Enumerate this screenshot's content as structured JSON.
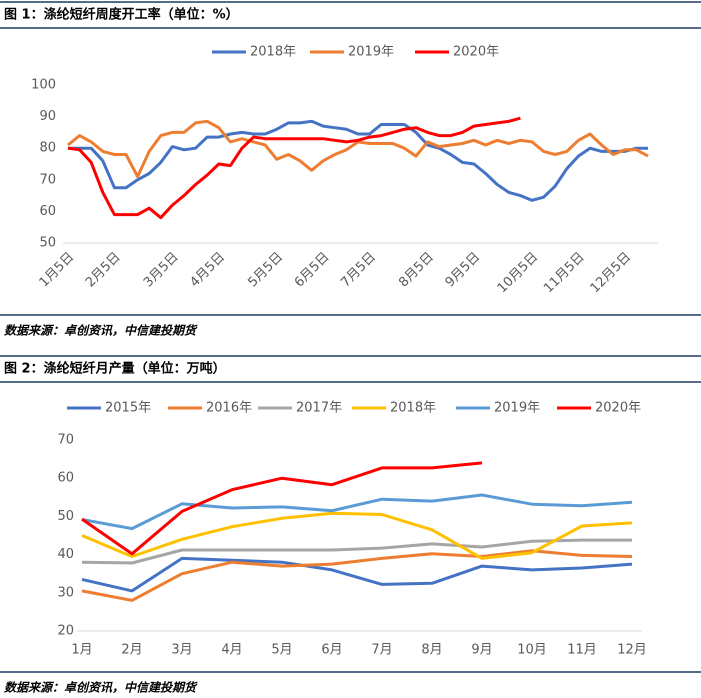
{
  "chart_data": [
    {
      "type": "line",
      "title": "图 1：涤纶短纤周度开工率（单位：%）",
      "source": "数据来源：卓创资讯，中信建投期货",
      "categories": [
        "1月5日",
        null,
        null,
        null,
        "2月5日",
        null,
        null,
        null,
        null,
        "3月5日",
        null,
        null,
        null,
        "4月5日",
        null,
        null,
        null,
        null,
        "5月5日",
        null,
        null,
        null,
        "6月5日",
        null,
        null,
        null,
        "7月5日",
        null,
        null,
        null,
        null,
        "8月5日",
        null,
        null,
        null,
        "9月5日",
        null,
        null,
        null,
        null,
        "10月5日",
        null,
        null,
        null,
        "11月5日",
        null,
        null,
        null,
        "12月5日",
        null,
        null
      ],
      "series": [
        {
          "name": "2018年",
          "color": "#4472c4",
          "values": [
            80,
            80,
            80,
            76,
            67.5,
            67.5,
            70,
            72,
            75.5,
            80.5,
            79.5,
            80,
            83.5,
            83.5,
            84.5,
            85,
            84.5,
            84.5,
            86,
            88,
            88,
            88.5,
            87,
            86.5,
            86,
            84.5,
            84.5,
            87.5,
            87.5,
            87.5,
            85,
            81,
            80,
            78,
            75.5,
            75,
            72,
            68.5,
            66,
            65,
            63.5,
            64.5,
            68,
            73.5,
            77.5,
            80,
            79,
            79,
            79,
            80,
            80
          ]
        },
        {
          "name": "2019年",
          "color": "#ed7d31",
          "values": [
            81,
            84,
            82,
            79,
            78,
            78,
            71,
            79,
            84,
            85,
            85,
            88,
            88.5,
            86.5,
            82,
            83,
            82,
            81,
            76.5,
            78,
            76,
            73,
            76,
            78,
            79.5,
            82,
            81.5,
            81.5,
            81.5,
            80,
            77.5,
            82,
            80.5,
            81,
            81.5,
            82.5,
            81,
            82.5,
            81.5,
            82.5,
            82,
            79,
            78,
            79,
            82.5,
            84.5,
            81,
            78,
            79.5,
            79.5,
            77.5
          ]
        },
        {
          "name": "2020年",
          "color": "#ff0000",
          "values": [
            80,
            79.5,
            75.5,
            66,
            59,
            59,
            59,
            61,
            58,
            62,
            65,
            68.5,
            71.5,
            75,
            74.5,
            80,
            83.5,
            83,
            83,
            83,
            83,
            83,
            83,
            82.5,
            82,
            82.5,
            83.5,
            84,
            85,
            86,
            86.5,
            85,
            84,
            84,
            85,
            87,
            87.5,
            88,
            88.5,
            89.5,
            null,
            null,
            null,
            null,
            null,
            null,
            null,
            null,
            null,
            null,
            null
          ]
        }
      ],
      "ylim": [
        50,
        100
      ],
      "yticks": [
        50,
        60,
        70,
        80,
        90,
        100
      ],
      "grid": false,
      "legend": "top"
    },
    {
      "type": "line",
      "title": "图 2：涤纶短纤月产量（单位：万吨）",
      "source": "数据来源：卓创资讯，中信建投期货",
      "categories": [
        "1月",
        "2月",
        "3月",
        "4月",
        "5月",
        "6月",
        "7月",
        "8月",
        "9月",
        "10月",
        "11月",
        "12月"
      ],
      "series": [
        {
          "name": "2015年",
          "color": "#4472c4",
          "values": [
            33.5,
            30.5,
            39,
            38.5,
            38,
            36,
            32.2,
            32.5,
            37,
            36,
            36.5,
            37.5
          ]
        },
        {
          "name": "2016年",
          "color": "#ed7d31",
          "values": [
            30.5,
            28,
            35,
            38,
            37,
            37.5,
            39,
            40.2,
            39.5,
            41,
            39.8,
            39.5
          ]
        },
        {
          "name": "2017年",
          "color": "#a5a5a5",
          "values": [
            38,
            37.8,
            41.2,
            41.2,
            41.2,
            41.2,
            41.7,
            42.8,
            42,
            43.5,
            43.8,
            43.8
          ]
        },
        {
          "name": "2018年",
          "color": "#ffc000",
          "values": [
            45,
            39.5,
            44,
            47.3,
            49.5,
            50.8,
            50.5,
            46.5,
            39,
            40.5,
            47.5,
            48.3
          ]
        },
        {
          "name": "2019年",
          "color": "#5b9bd5",
          "values": [
            49.2,
            46.8,
            53.3,
            52.2,
            52.5,
            51.5,
            54.5,
            54,
            55.6,
            53.2,
            52.8,
            53.7
          ]
        },
        {
          "name": "2020年",
          "color": "#ff0000",
          "values": [
            49.3,
            40.2,
            51.3,
            57,
            60,
            58.3,
            62.7,
            62.7,
            64,
            null,
            null,
            null
          ]
        }
      ],
      "ylim": [
        20,
        70
      ],
      "yticks": [
        20,
        30,
        40,
        50,
        60,
        70
      ],
      "grid": false,
      "legend": "top"
    }
  ]
}
